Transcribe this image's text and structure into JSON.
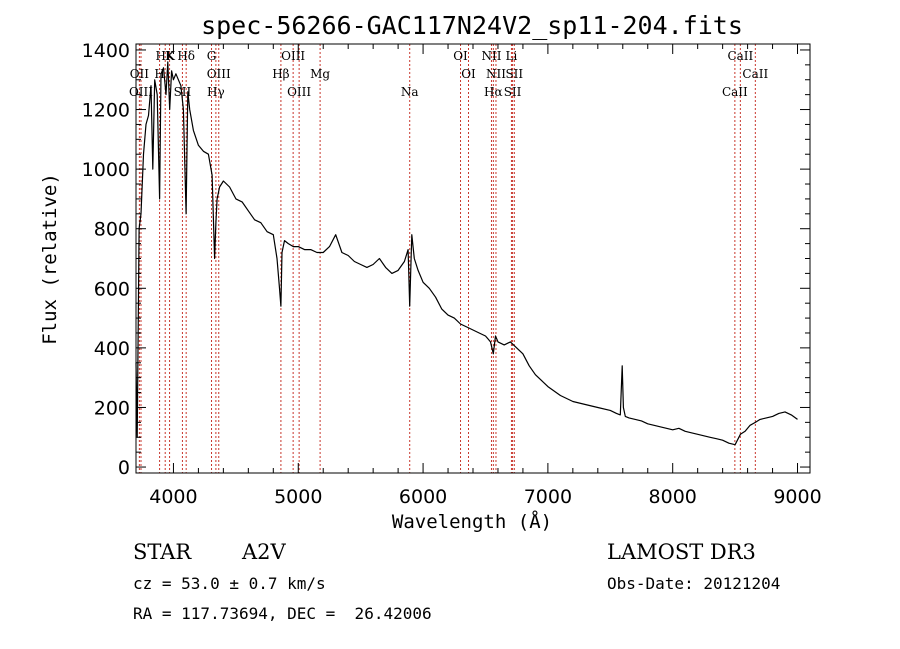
{
  "chart_data": {
    "type": "line",
    "title": "spec-56266-GAC117N24V2_sp11-204.fits",
    "xlabel": "Wavelength (Å)",
    "ylabel": "Flux (relative)",
    "xlim": [
      3700,
      9100
    ],
    "ylim": [
      -20,
      1420
    ],
    "xticks": [
      4000,
      5000,
      6000,
      7000,
      8000,
      9000
    ],
    "yticks": [
      0,
      200,
      400,
      600,
      800,
      1000,
      1200,
      1400
    ],
    "series": [
      {
        "name": "flux",
        "x": [
          3700,
          3710,
          3725,
          3740,
          3760,
          3780,
          3800,
          3820,
          3835,
          3850,
          3870,
          3889,
          3900,
          3920,
          3940,
          3955,
          3970,
          3985,
          4000,
          4020,
          4040,
          4060,
          4080,
          4101,
          4115,
          4130,
          4160,
          4200,
          4240,
          4280,
          4310,
          4330,
          4340,
          4350,
          4370,
          4400,
          4450,
          4500,
          4550,
          4600,
          4650,
          4700,
          4750,
          4800,
          4830,
          4850,
          4861,
          4870,
          4890,
          4920,
          4960,
          5000,
          5050,
          5100,
          5150,
          5200,
          5250,
          5300,
          5350,
          5400,
          5450,
          5500,
          5550,
          5600,
          5650,
          5700,
          5750,
          5800,
          5850,
          5880,
          5893,
          5910,
          5930,
          5960,
          6000,
          6050,
          6100,
          6150,
          6200,
          6250,
          6300,
          6350,
          6400,
          6450,
          6500,
          6520,
          6540,
          6563,
          6580,
          6600,
          6650,
          6700,
          6750,
          6800,
          6850,
          6900,
          6950,
          7000,
          7100,
          7200,
          7300,
          7400,
          7500,
          7550,
          7580,
          7595,
          7605,
          7620,
          7650,
          7700,
          7750,
          7800,
          7850,
          7900,
          7950,
          8000,
          8050,
          8100,
          8150,
          8200,
          8250,
          8300,
          8350,
          8400,
          8450,
          8500,
          8542,
          8580,
          8620,
          8662,
          8700,
          8750,
          8800,
          8850,
          8900,
          8950,
          9000
        ],
        "y": [
          350,
          100,
          800,
          850,
          1050,
          1150,
          1180,
          1280,
          1000,
          1300,
          1250,
          900,
          1320,
          1340,
          1250,
          1360,
          1200,
          1330,
          1300,
          1320,
          1300,
          1280,
          1200,
          850,
          1260,
          1200,
          1130,
          1080,
          1060,
          1050,
          980,
          700,
          820,
          900,
          940,
          960,
          940,
          900,
          890,
          860,
          830,
          820,
          790,
          780,
          700,
          600,
          540,
          720,
          760,
          750,
          740,
          740,
          730,
          730,
          720,
          720,
          740,
          780,
          720,
          710,
          690,
          680,
          670,
          680,
          700,
          670,
          650,
          660,
          690,
          730,
          540,
          780,
          700,
          660,
          620,
          600,
          570,
          530,
          510,
          500,
          480,
          470,
          460,
          450,
          440,
          430,
          420,
          380,
          440,
          420,
          410,
          420,
          400,
          380,
          340,
          310,
          290,
          270,
          240,
          220,
          210,
          200,
          190,
          180,
          175,
          340,
          200,
          170,
          165,
          160,
          155,
          145,
          140,
          135,
          130,
          125,
          130,
          120,
          115,
          110,
          105,
          100,
          95,
          90,
          80,
          75,
          110,
          120,
          140,
          150,
          160,
          165,
          170,
          180,
          185,
          175,
          160
        ]
      }
    ],
    "lines": [
      {
        "label": "HK",
        "x": 3934
      },
      {
        "label": "OII",
        "x": 3727
      },
      {
        "label": "OIII",
        "x": 3740
      },
      {
        "label": "K",
        "x": 3969
      },
      {
        "label": "H",
        "x": 3889
      },
      {
        "label": "SII",
        "x": 4072
      },
      {
        "label": "Hδ",
        "x": 4102
      },
      {
        "label": "OIII",
        "x": 4363
      },
      {
        "label": "Hγ",
        "x": 4340
      },
      {
        "label": "G",
        "x": 4305
      },
      {
        "label": "Hβ",
        "x": 4861
      },
      {
        "label": "OIII",
        "x": 5007
      },
      {
        "label": "OIII",
        "x": 4959
      },
      {
        "label": "Mg",
        "x": 5175
      },
      {
        "label": "Na",
        "x": 5893
      },
      {
        "label": "OI",
        "x": 6300
      },
      {
        "label": "OI",
        "x": 6364
      },
      {
        "label": "Hα",
        "x": 6563
      },
      {
        "label": "NII",
        "x": 6548
      },
      {
        "label": "NII",
        "x": 6584
      },
      {
        "label": "SII",
        "x": 6717
      },
      {
        "label": "Li",
        "x": 6708
      },
      {
        "label": "SII",
        "x": 6731
      },
      {
        "label": "CaII",
        "x": 8498
      },
      {
        "label": "CaII",
        "x": 8542
      },
      {
        "label": "CaII",
        "x": 8662
      }
    ]
  },
  "info": {
    "class": "STAR",
    "subclass": "A2V",
    "survey": "LAMOST DR3",
    "cz": "cz = 53.0 ± 0.7 km/s",
    "obs_date": "Obs-Date: 20121204",
    "coords": "RA = 117.73694, DEC =  26.42006"
  }
}
